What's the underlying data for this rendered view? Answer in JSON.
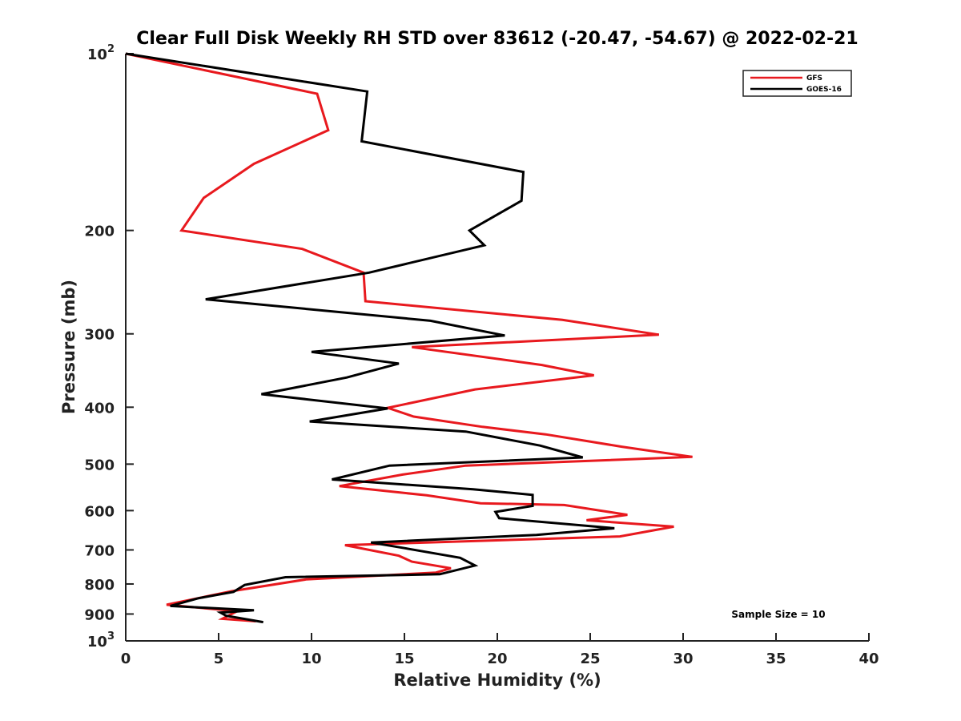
{
  "chart_data": {
    "type": "line",
    "title": "Clear Full Disk Weekly RH STD over 83612 (-20.47, -54.67) @ 2022-02-21",
    "xlabel": "Relative Humidity (%)",
    "ylabel": "Pressure (mb)",
    "xlim": [
      0,
      40
    ],
    "ylim": [
      100,
      1000
    ],
    "y_scale": "log",
    "y_reversed": true,
    "grid": false,
    "legend_position": "top-right",
    "x_ticks": [
      "0",
      "5",
      "10",
      "15",
      "20",
      "25",
      "30",
      "35",
      "40"
    ],
    "x_tick_values": [
      0,
      5,
      10,
      15,
      20,
      25,
      30,
      35,
      40
    ],
    "y_ticks": [
      {
        "value": 100,
        "base": "10",
        "exp": "2"
      },
      {
        "value": 200,
        "label": "200"
      },
      {
        "value": 300,
        "label": "300"
      },
      {
        "value": 400,
        "label": "400"
      },
      {
        "value": 500,
        "label": "500"
      },
      {
        "value": 600,
        "label": "600"
      },
      {
        "value": 700,
        "label": "700"
      },
      {
        "value": 800,
        "label": "800"
      },
      {
        "value": 900,
        "label": "900"
      },
      {
        "value": 1000,
        "base": "10",
        "exp": "3"
      }
    ],
    "series": [
      {
        "name": "GFS",
        "color": "#e8191e",
        "points": [
          [
            0.0,
            100
          ],
          [
            10.3,
            117
          ],
          [
            10.9,
            135
          ],
          [
            6.9,
            154
          ],
          [
            4.2,
            176
          ],
          [
            3.0,
            200
          ],
          [
            9.5,
            215
          ],
          [
            12.8,
            236
          ],
          [
            12.9,
            264
          ],
          [
            23.5,
            284
          ],
          [
            28.7,
            301
          ],
          [
            15.4,
            316
          ],
          [
            22.4,
            339
          ],
          [
            25.2,
            353
          ],
          [
            18.8,
            373
          ],
          [
            14.1,
            401
          ],
          [
            15.5,
            415
          ],
          [
            19.2,
            432
          ],
          [
            22.6,
            445
          ],
          [
            26.7,
            467
          ],
          [
            30.5,
            486
          ],
          [
            18.3,
            503
          ],
          [
            14.9,
            521
          ],
          [
            11.5,
            545
          ],
          [
            16.2,
            565
          ],
          [
            19.1,
            583
          ],
          [
            23.6,
            587
          ],
          [
            27.0,
            610
          ],
          [
            24.8,
            623
          ],
          [
            29.5,
            639
          ],
          [
            26.6,
            664
          ],
          [
            11.8,
            687
          ],
          [
            14.7,
            716
          ],
          [
            15.4,
            733
          ],
          [
            17.5,
            752
          ],
          [
            16.7,
            765
          ],
          [
            9.7,
            786
          ],
          [
            5.7,
            823
          ],
          [
            2.2,
            868
          ],
          [
            6.0,
            890
          ],
          [
            5.2,
            917
          ],
          [
            7.0,
            926
          ]
        ]
      },
      {
        "name": "GOES-16",
        "color": "#000000",
        "points": [
          [
            0.0,
            100
          ],
          [
            13.0,
            116
          ],
          [
            12.7,
            141
          ],
          [
            21.4,
            159
          ],
          [
            21.3,
            178
          ],
          [
            18.5,
            200
          ],
          [
            19.3,
            212
          ],
          [
            13.1,
            236
          ],
          [
            4.3,
            262
          ],
          [
            16.4,
            285
          ],
          [
            20.4,
            302
          ],
          [
            10.0,
            322
          ],
          [
            14.7,
            337
          ],
          [
            11.9,
            356
          ],
          [
            7.3,
            380
          ],
          [
            14.1,
            402
          ],
          [
            9.9,
            423
          ],
          [
            18.3,
            440
          ],
          [
            22.3,
            465
          ],
          [
            24.6,
            487
          ],
          [
            14.2,
            503
          ],
          [
            11.1,
            531
          ],
          [
            18.7,
            552
          ],
          [
            21.9,
            564
          ],
          [
            21.9,
            589
          ],
          [
            19.9,
            603
          ],
          [
            20.1,
            618
          ],
          [
            26.3,
            643
          ],
          [
            22.1,
            660
          ],
          [
            13.2,
            680
          ],
          [
            15.0,
            695
          ],
          [
            18.0,
            722
          ],
          [
            18.8,
            744
          ],
          [
            16.9,
            770
          ],
          [
            8.6,
            779
          ],
          [
            6.4,
            803
          ],
          [
            5.8,
            825
          ],
          [
            3.9,
            846
          ],
          [
            2.4,
            872
          ],
          [
            6.9,
            887
          ],
          [
            5.1,
            895
          ],
          [
            5.4,
            906
          ],
          [
            7.4,
            929
          ]
        ]
      }
    ],
    "annotation": "Sample Size = 10"
  }
}
